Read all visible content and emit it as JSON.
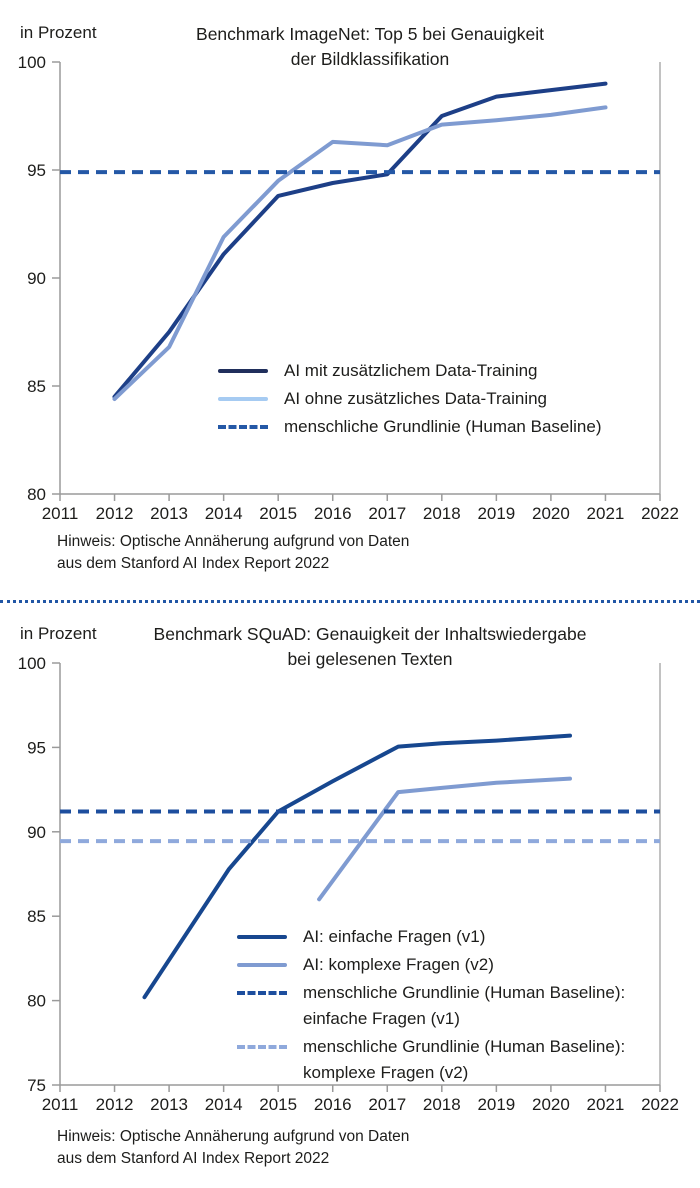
{
  "divider": {
    "style": "dotted",
    "color": "#2156a5"
  },
  "chart_data": [
    {
      "id": "imagenet",
      "type": "line",
      "title": "Benchmark ImageNet: Top 5 bei Genauigkeit\nder Bildklassifikation",
      "y_unit": "in Prozent",
      "note": "Hinweis: Optische Annäherung aufgrund von Daten\naus dem Stanford AI Index Report 2022",
      "xlim": [
        2011,
        2022
      ],
      "ylim": [
        80,
        100
      ],
      "x_ticks": [
        2011,
        2012,
        2013,
        2014,
        2015,
        2016,
        2017,
        2018,
        2019,
        2020,
        2021,
        2022
      ],
      "y_ticks": [
        100,
        95,
        90,
        85,
        80
      ],
      "grid": false,
      "legend_position": "inside-lower-right",
      "axis_color": "#9a9a9a",
      "text_color": "#1d1d1b",
      "series": [
        {
          "name": "AI mit zusätzlichem Data-Training",
          "style": "solid",
          "color": "#1d3f87",
          "legend_color": "#202f5c",
          "points": [
            [
              2012,
              84.5
            ],
            [
              2013,
              87.5
            ],
            [
              2014,
              91.1
            ],
            [
              2015,
              93.8
            ],
            [
              2016,
              94.4
            ],
            [
              2017,
              94.8
            ],
            [
              2018,
              97.5
            ],
            [
              2019,
              98.4
            ],
            [
              2020,
              98.7
            ],
            [
              2021,
              99.0
            ]
          ]
        },
        {
          "name": "AI ohne zusätzliches Data-Training",
          "style": "solid",
          "color": "#7f9bd1",
          "legend_color": "#a6cbf2",
          "points": [
            [
              2012,
              84.4
            ],
            [
              2013,
              86.8
            ],
            [
              2014,
              91.9
            ],
            [
              2015,
              94.5
            ],
            [
              2016,
              96.3
            ],
            [
              2017,
              96.15
            ],
            [
              2018,
              97.1
            ],
            [
              2019,
              97.3
            ],
            [
              2020,
              97.55
            ],
            [
              2021,
              97.9
            ]
          ]
        },
        {
          "name": "menschliche Grundlinie (Human Baseline)",
          "style": "dashed",
          "color": "#2458a6",
          "legend_color": "#2458a6",
          "baseline": 94.9
        }
      ]
    },
    {
      "id": "squad",
      "type": "line",
      "title": "Benchmark SQuAD: Genauigkeit der Inhaltswiedergabe\nbei gelesenen Texten",
      "y_unit": "in Prozent",
      "note": "Hinweis: Optische Annäherung aufgrund von Daten\naus dem Stanford AI Index Report 2022",
      "xlim": [
        2011,
        2022
      ],
      "ylim": [
        75,
        100
      ],
      "x_ticks": [
        2011,
        2012,
        2013,
        2014,
        2015,
        2016,
        2017,
        2018,
        2019,
        2020,
        2021,
        2022
      ],
      "y_ticks": [
        100,
        95,
        90,
        85,
        80,
        75
      ],
      "grid": false,
      "legend_position": "inside-lower-right",
      "axis_color": "#9a9a9a",
      "text_color": "#1d1d1b",
      "series": [
        {
          "name": "AI: einfache Fragen (v1)",
          "style": "solid",
          "color": "#17478f",
          "legend_color": "#17478f",
          "points": [
            [
              2012.55,
              80.2
            ],
            [
              2014.1,
              87.8
            ],
            [
              2015,
              91.2
            ],
            [
              2016,
              93.0
            ],
            [
              2017.2,
              95.05
            ],
            [
              2018,
              95.25
            ],
            [
              2019,
              95.4
            ],
            [
              2020.35,
              95.7
            ]
          ]
        },
        {
          "name": "AI: komplexe Fragen (v2)",
          "style": "solid",
          "color": "#7f9bd1",
          "legend_color": "#7f9bd1",
          "points": [
            [
              2015.75,
              86.0
            ],
            [
              2017.2,
              92.35
            ],
            [
              2018,
              92.6
            ],
            [
              2019,
              92.9
            ],
            [
              2020.35,
              93.15
            ]
          ]
        },
        {
          "name": "menschliche Grundlinie (Human Baseline):\neinfache Fragen (v1)",
          "style": "dashed",
          "color": "#1d4e9e",
          "legend_color": "#1d4e9e",
          "baseline": 91.2
        },
        {
          "name": "menschliche Grundlinie (Human Baseline):\nkomplexe Fragen (v2)",
          "style": "dashed",
          "color": "#8fa9dc",
          "legend_color": "#8fa9dc",
          "baseline": 89.45
        }
      ]
    }
  ]
}
